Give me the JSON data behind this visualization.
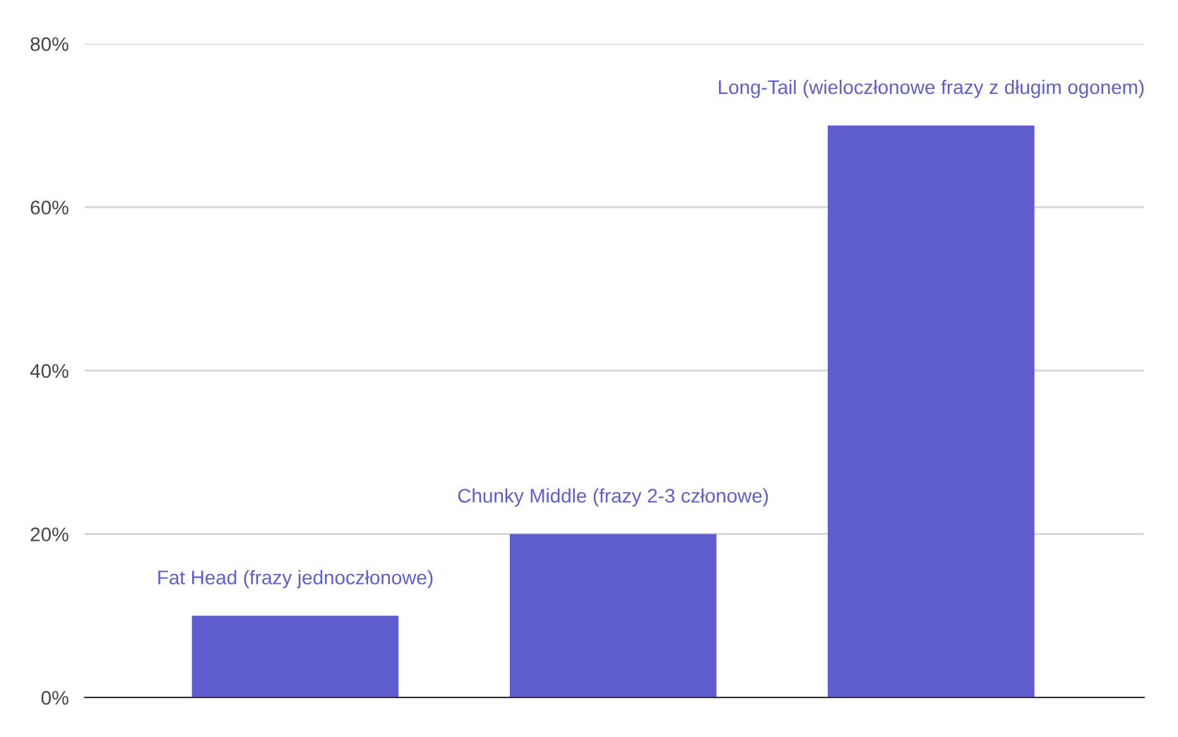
{
  "chart_data": {
    "type": "bar",
    "categories": [
      "Fat Head (frazy jednoczłonowe)",
      "Chunky Middle (frazy 2-3 członowe)",
      "Long-Tail (wieloczłonowe frazy z długim ogonem)"
    ],
    "values": [
      10,
      20,
      70
    ],
    "color": "#5f5dcd",
    "ylim": [
      0,
      80
    ],
    "yticks": [
      {
        "value": 0,
        "label": "0%"
      },
      {
        "value": 20,
        "label": "20%"
      },
      {
        "value": 40,
        "label": "40%"
      },
      {
        "value": 60,
        "label": "60%"
      },
      {
        "value": 80,
        "label": "80%"
      }
    ],
    "grid": "y",
    "tick_labels": "y"
  }
}
